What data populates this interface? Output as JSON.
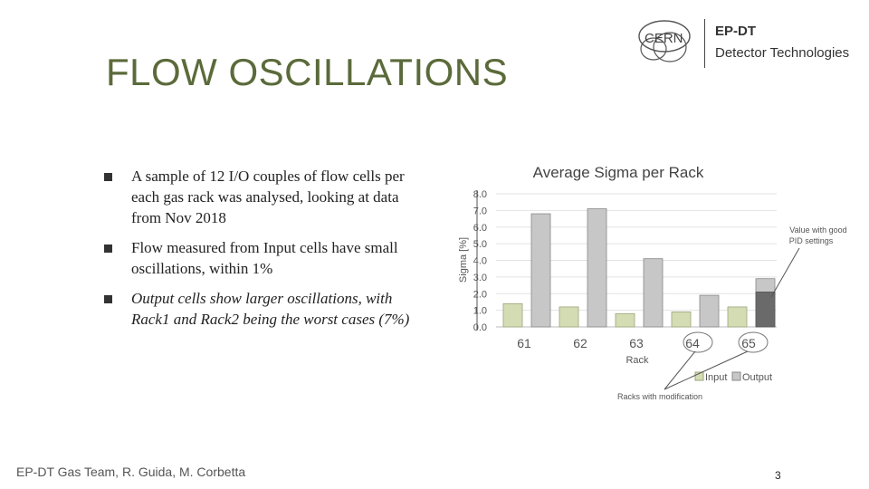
{
  "slide": {
    "title": "FLOW OSCILLATIONS",
    "footer": "EP-DT Gas Team, R. Guida, M. Corbetta",
    "page_number": "3"
  },
  "logo": {
    "mark_text": "CERN",
    "line1": "EP-DT",
    "line2": "Detector Technologies"
  },
  "bullets": [
    "A sample of 12 I/O couples of flow cells per each gas rack was analysed, looking at data from Nov 2018",
    "Flow measured from Input cells have small oscillations, within 1%",
    "Output cells show larger oscillations, with Rack1 and Rack2 being the worst cases (7%)"
  ],
  "annotations": {
    "pid_note": [
      "Value with good",
      "PID settings"
    ],
    "mod_note": "Racks with modification"
  },
  "chart_data": {
    "type": "bar",
    "title": "Average Sigma per Rack",
    "xlabel": "Rack",
    "ylabel": "Sigma [%]",
    "ylim": [
      0,
      8
    ],
    "yticks": [
      "0.0",
      "1.0",
      "2.0",
      "3.0",
      "4.0",
      "5.0",
      "6.0",
      "7.0",
      "8.0"
    ],
    "categories": [
      "61",
      "62",
      "63",
      "64",
      "65"
    ],
    "series": [
      {
        "name": "Input",
        "color": "#d4dcb4",
        "values": [
          1.4,
          1.2,
          0.8,
          0.9,
          1.2
        ]
      },
      {
        "name": "Output",
        "color": "#c7c7c7",
        "values": [
          6.8,
          7.1,
          4.1,
          1.9,
          2.9
        ]
      }
    ],
    "output_rack65_good_pid_value": 2.1,
    "grid": true,
    "legend": "bottom-right"
  }
}
